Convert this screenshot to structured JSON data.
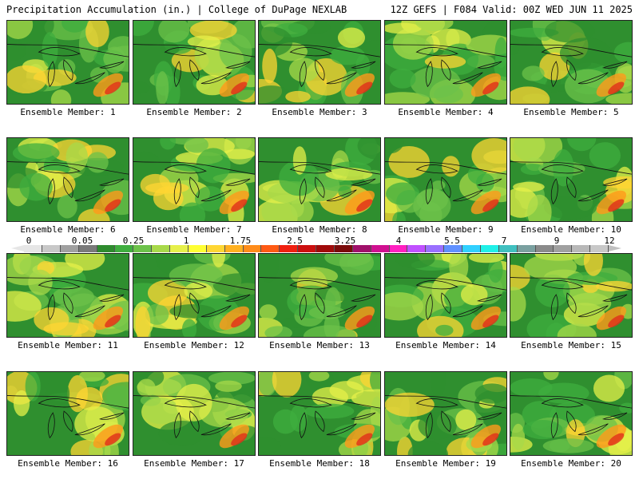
{
  "header": {
    "title_left": "Precipitation Accumulation (in.) | College of DuPage NEXLAB",
    "title_right": "12Z GEFS | F084 Valid: 00Z WED JUN 11 2025"
  },
  "colorbar": {
    "tick_labels": [
      "0",
      "0.05",
      "0.25",
      "1",
      "1.75",
      "2.5",
      "3.25",
      "4",
      "5.5",
      "7",
      "9",
      "12"
    ],
    "colors": [
      "#e6e6e6",
      "#c8c8c8",
      "#a0a0a0",
      "#7a7a7a",
      "#2e8b2e",
      "#3fae3f",
      "#6cc24a",
      "#a8d94a",
      "#e6f04a",
      "#ffff33",
      "#ffd633",
      "#ffb020",
      "#ff8c1a",
      "#ff5a14",
      "#f02010",
      "#cc0f0f",
      "#a00a0a",
      "#7a0a0a",
      "#a0106a",
      "#d01090",
      "#ff20c0",
      "#c050ff",
      "#9a70ff",
      "#6090ff",
      "#30d0ff",
      "#20f0e8",
      "#40c0c0",
      "#7aa0a0",
      "#8a8a8a",
      "#a0a0a0",
      "#b8b8b8",
      "#c8c8c8"
    ]
  },
  "members": [
    {
      "label": "Ensemble Member: 1"
    },
    {
      "label": "Ensemble Member: 2"
    },
    {
      "label": "Ensemble Member: 3"
    },
    {
      "label": "Ensemble Member: 4"
    },
    {
      "label": "Ensemble Member: 5"
    },
    {
      "label": "Ensemble Member: 6"
    },
    {
      "label": "Ensemble Member: 7"
    },
    {
      "label": "Ensemble Member: 8"
    },
    {
      "label": "Ensemble Member: 9"
    },
    {
      "label": "Ensemble Member: 10"
    },
    {
      "label": "Ensemble Member: 11"
    },
    {
      "label": "Ensemble Member: 12"
    },
    {
      "label": "Ensemble Member: 13"
    },
    {
      "label": "Ensemble Member: 14"
    },
    {
      "label": "Ensemble Member: 15"
    },
    {
      "label": "Ensemble Member: 16"
    },
    {
      "label": "Ensemble Member: 17"
    },
    {
      "label": "Ensemble Member: 18"
    },
    {
      "label": "Ensemble Member: 19"
    },
    {
      "label": "Ensemble Member: 20"
    }
  ]
}
